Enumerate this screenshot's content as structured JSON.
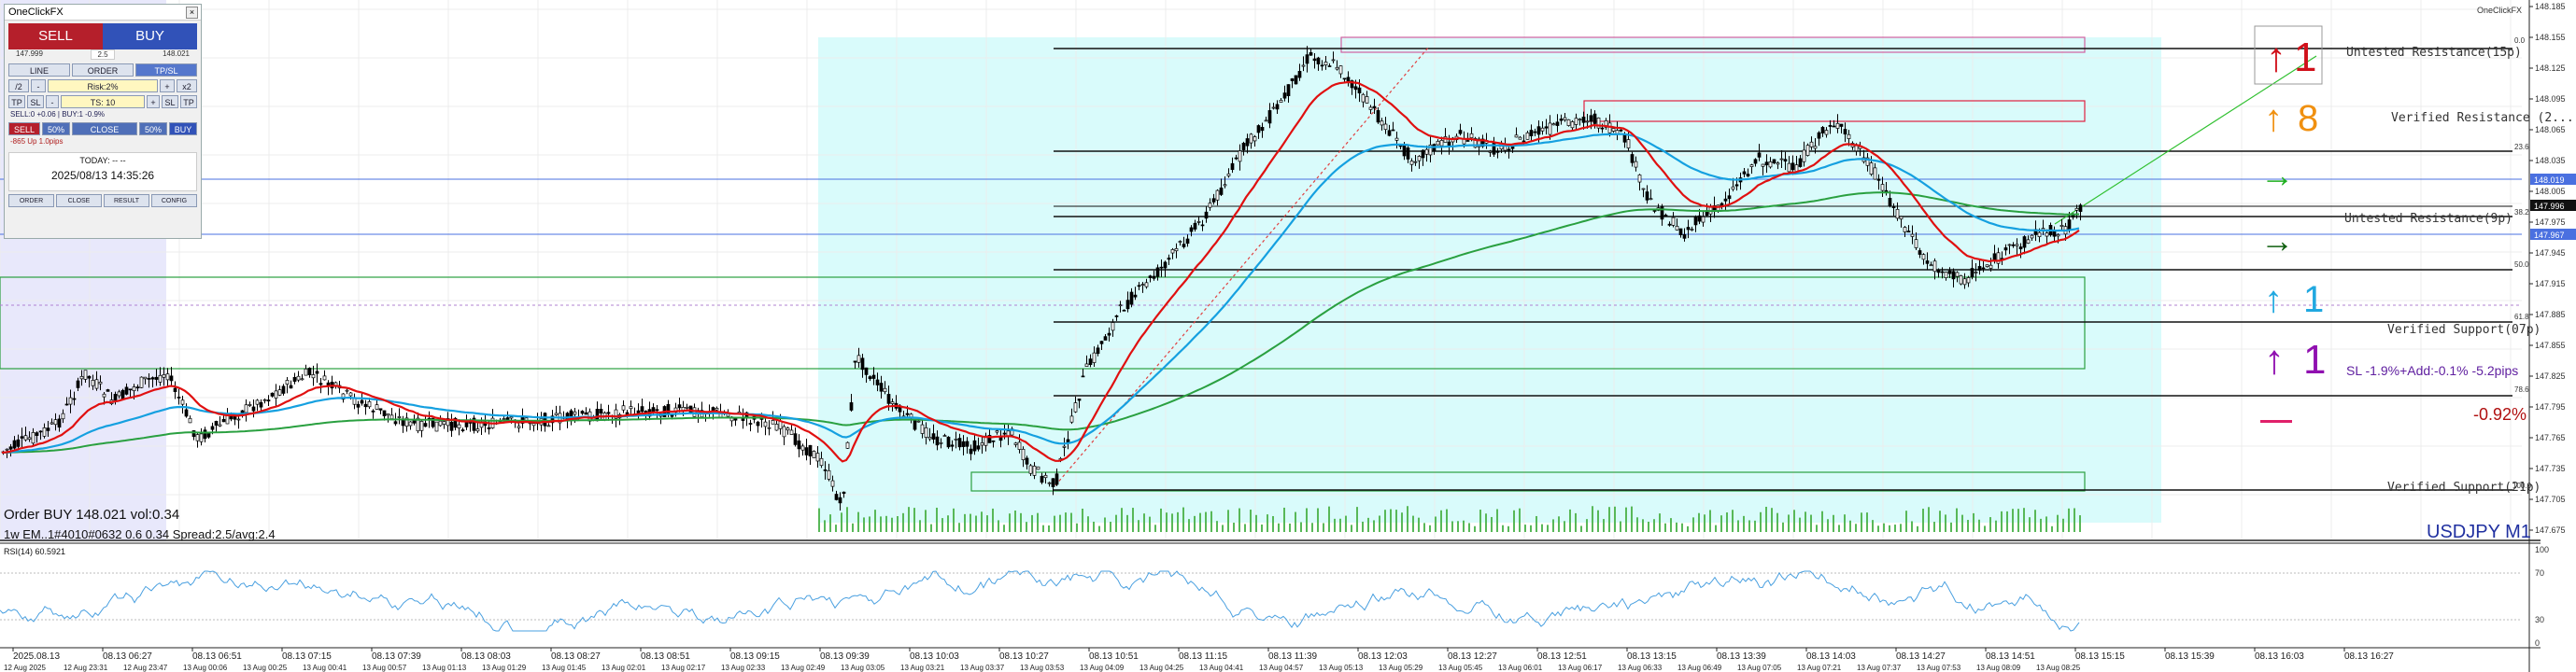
{
  "panel": {
    "title": "OneClickFX",
    "sell_label": "SELL",
    "buy_label": "BUY",
    "spread": "2.5",
    "sell_price": "147.999",
    "buy_price": "148.021",
    "tabs": [
      "LINE",
      "ORDER",
      "TP/SL"
    ],
    "lot_div": "/2",
    "lot_minus": "-",
    "risk": "Risk:2%",
    "lot_plus": "+",
    "lot_mult": "x2",
    "tp": "TP",
    "sl": "SL",
    "ts": "TS: 10",
    "pos_info": "SELL:0 +0.06 | BUY:1 -0.9%",
    "pos_info2": "-865 Up   1.0pips",
    "bottom_row": [
      "SELL",
      "50%",
      "CLOSE",
      "50%",
      "BUY"
    ],
    "today": "TODAY: -- --",
    "datetime": "2025/08/13  14:35:26",
    "footer": [
      "ORDER",
      "CLOSE",
      "RESULT",
      "CONFIG"
    ]
  },
  "chart": {
    "symbol": "USDJPY M1",
    "corner_label": "OneClickFX",
    "order_text": "Order BUY 148.021 vol:0.34",
    "overlay_text": "1w EM..1#4010#0632 0.6 0.34  Spread:2.5/avg:2.4",
    "rsi_label": "RSI(14) 60.5921",
    "zones": {
      "resistance_15": "Untested Resistance(15p)",
      "resistance_2": "Verified Resistance (2...",
      "resistance_9": "Untested Resistance(9p)",
      "support_7": "Verified Support(07p)",
      "support_21": "Verified Support(21p)"
    },
    "fib_labels": [
      "0.0",
      "23.6",
      "38.2",
      "50.0",
      "61.8",
      "78.6",
      "100.0"
    ],
    "signals": {
      "s1": "1",
      "s2": "8",
      "s3": "1",
      "s4": "1",
      "sl_text": "SL -1.9%+Add:-0.1% -5.2pips",
      "pct": "-0.92%"
    },
    "price_labels": [
      "148.185",
      "148.155",
      "148.125",
      "148.095",
      "148.065",
      "148.035",
      "148.005",
      "147.975",
      "147.945",
      "147.915",
      "147.885",
      "147.855",
      "147.825",
      "147.795",
      "147.765",
      "147.735",
      "147.705",
      "147.675"
    ],
    "price_markers": {
      "bid": "147.996",
      "ask": "148.019",
      "blue": "147.967"
    },
    "rsi_levels": [
      "100",
      "70",
      "30",
      "0"
    ],
    "time_labels_top": [
      "2025.08.13",
      "08.13 06:27",
      "08.13 06:51",
      "08.13 07:15",
      "08.13 07:39",
      "08.13 08:03",
      "08.13 08:27",
      "08.13 08:51",
      "08.13 09:15",
      "08.13 09:39",
      "08.13 10:03",
      "08.13 10:27",
      "08.13 10:51",
      "08.13 11:15",
      "08.13 11:39",
      "08.13 12:03",
      "08.13 12:27",
      "08.13 12:51",
      "08.13 13:15",
      "08.13 13:39",
      "08.13 14:03",
      "08.13 14:27",
      "08.13 14:51",
      "08.13 15:15",
      "08.13 15:39",
      "08.13 16:03",
      "08.13 16:27"
    ],
    "time_labels_bottom": [
      "12 Aug 2025",
      "12 Aug 23:31",
      "12 Aug 23:47",
      "13 Aug 00:06",
      "13 Aug 00:25",
      "13 Aug 00:41",
      "13 Aug 00:57",
      "13 Aug 01:13",
      "13 Aug 01:29",
      "13 Aug 01:45",
      "13 Aug 02:01",
      "13 Aug 02:17",
      "13 Aug 02:33",
      "13 Aug 02:49",
      "13 Aug 03:05",
      "13 Aug 03:21",
      "13 Aug 03:37",
      "13 Aug 03:53",
      "13 Aug 04:09",
      "13 Aug 04:25",
      "13 Aug 04:41",
      "13 Aug 04:57",
      "13 Aug 05:13",
      "13 Aug 05:29",
      "13 Aug 05:45",
      "13 Aug 06:01",
      "13 Aug 06:17",
      "13 Aug 06:33",
      "13 Aug 06:49",
      "13 Aug 07:05",
      "13 Aug 07:21",
      "13 Aug 07:37",
      "13 Aug 07:53",
      "13 Aug 08:09",
      "13 Aug 08:25"
    ]
  },
  "colors": {
    "bull": "#000000",
    "ema_fast": "#e01010",
    "ema_mid": "#15a0e0",
    "ema_slow": "#2aa040",
    "zone_fill": "#d9fbfb",
    "accent_red": "#d0101a",
    "accent_orange": "#f09010",
    "accent_green": "#20b020",
    "accent_dgreen": "#106010",
    "accent_cyan": "#20a8e0",
    "accent_purple": "#9010b0",
    "accent_pink": "#e0206a"
  }
}
